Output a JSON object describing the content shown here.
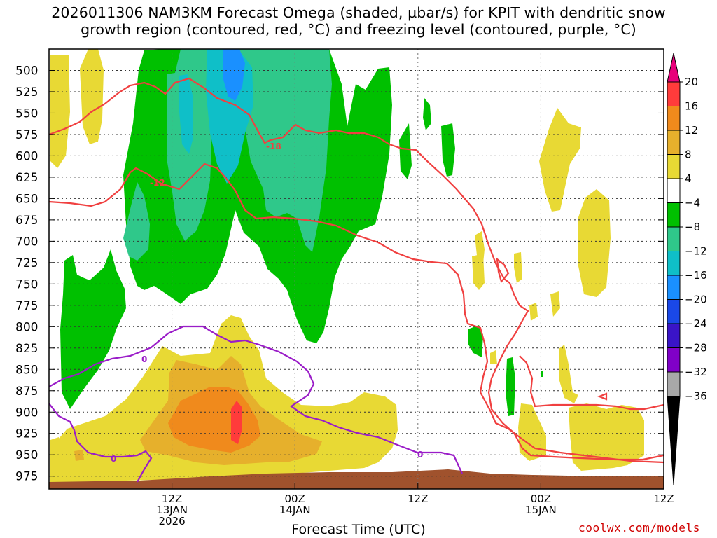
{
  "title_line1": "2026011306 NAM3KM Forecast Omega (shaded, µbar/s) for KPIT with dendritic snow",
  "title_line2": "growth region (contoured, red, °C) and freezing level (contoured, purple, °C)",
  "xlabel": "Forecast Time (UTC)",
  "credit": "coolwx.com/models",
  "chart_data": {
    "type": "heatmap",
    "title": "2026011306 NAM3KM Forecast Omega (shaded, µbar/s) for KPIT with dendritic snow growth region (contoured, red, °C) and freezing level (contoured, purple, °C)",
    "xlabel": "Forecast Time (UTC)",
    "ylabel": "",
    "x_range_hours": [
      6,
      66
    ],
    "y_range_hPa": [
      475,
      990
    ],
    "y_scale": "linear-inverted",
    "grid": true,
    "y_ticks": [
      500,
      525,
      550,
      575,
      600,
      625,
      650,
      675,
      700,
      725,
      750,
      775,
      800,
      825,
      850,
      875,
      900,
      925,
      950,
      975
    ],
    "x_ticks": [
      {
        "hour": 18,
        "lines": [
          "12Z",
          "13JAN",
          "2026"
        ]
      },
      {
        "hour": 30,
        "lines": [
          "00Z",
          "14JAN"
        ]
      },
      {
        "hour": 42,
        "lines": [
          "12Z"
        ]
      },
      {
        "hour": 54,
        "lines": [
          "00Z",
          "15JAN"
        ]
      },
      {
        "hour": 66,
        "lines": [
          "12Z"
        ]
      }
    ],
    "colorbar": {
      "ticks": [
        "20",
        "16",
        "12",
        "8",
        "4",
        "−4",
        "−8",
        "−12",
        "−16",
        "−20",
        "−24",
        "−28",
        "−32",
        "−36"
      ],
      "colors": [
        "#ff3b3b",
        "#f08a1c",
        "#e6b02c",
        "#e8d934",
        "#ffffff",
        "#00c000",
        "#2fc88a",
        "#0fbfc8",
        "#1a90ff",
        "#1a48e8",
        "#3a14c8",
        "#8000c8",
        "#a8a8a8"
      ],
      "top_arrow": "#e8007a",
      "bottom_arrow": "#000000"
    },
    "contours": [
      {
        "name": "dendritic growth -12",
        "label": "-12",
        "color": "#f04040"
      },
      {
        "name": "dendritic growth -18",
        "label": "-18",
        "color": "#f04040"
      },
      {
        "name": "freezing level 0",
        "label": "0",
        "color": "#9a1cc8"
      }
    ],
    "ground_color": "#a0522d"
  }
}
